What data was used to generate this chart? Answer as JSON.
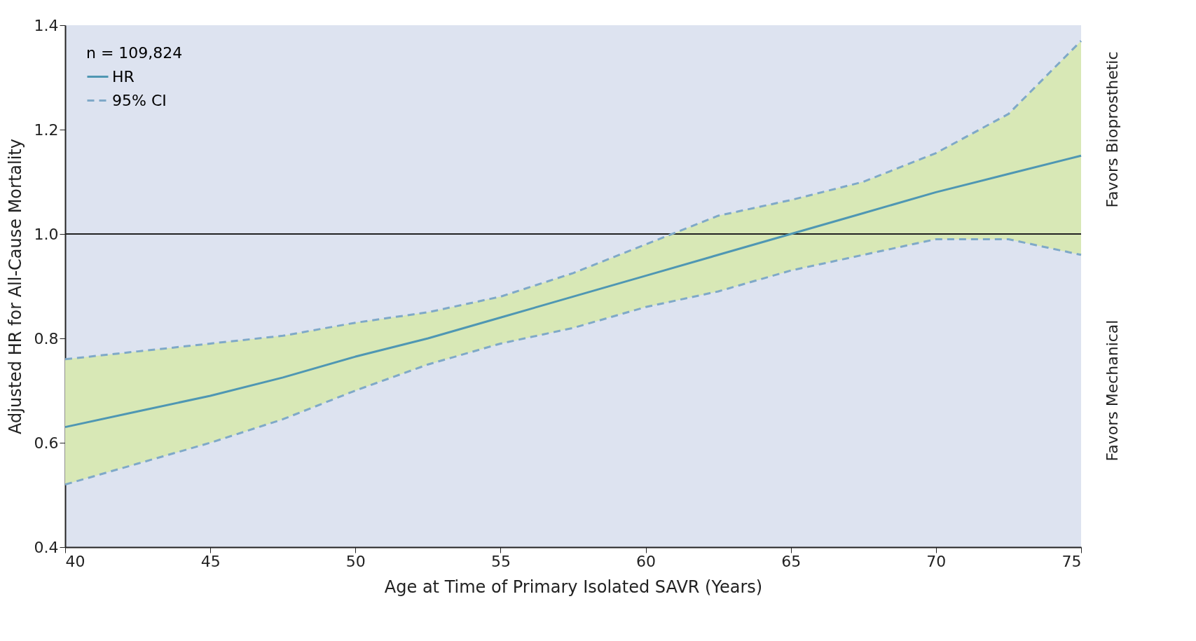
{
  "chart_data": {
    "type": "line",
    "xlabel": "Age at Time of Primary Isolated SAVR (Years)",
    "ylabel": "Adjusted HR for All-Cause Mortality",
    "legend_title": "n = 109,824",
    "legend": "top left",
    "grid": false,
    "x": [
      40,
      42.5,
      45,
      47.5,
      50,
      52.5,
      55,
      57.5,
      60,
      62.5,
      65,
      67.5,
      70,
      72.5,
      75
    ],
    "series": [
      {
        "name": "HR",
        "color": "#4f97b3",
        "line_style": "solid",
        "values": [
          0.63,
          0.66,
          0.69,
          0.725,
          0.765,
          0.8,
          0.84,
          0.88,
          0.92,
          0.96,
          1.0,
          1.04,
          1.08,
          1.115,
          1.15
        ],
        "lower": [
          0.52,
          0.56,
          0.6,
          0.645,
          0.7,
          0.75,
          0.79,
          0.82,
          0.86,
          0.89,
          0.93,
          0.96,
          0.99,
          0.99,
          0.96
        ],
        "upper": [
          0.76,
          0.775,
          0.79,
          0.805,
          0.83,
          0.85,
          0.88,
          0.925,
          0.98,
          1.035,
          1.065,
          1.1,
          1.155,
          1.23,
          1.37
        ]
      },
      {
        "name": "95% CI",
        "color": "#7fa9c8",
        "line_style": "dashed",
        "values": [
          0.76,
          0.775,
          0.79,
          0.805,
          0.83,
          0.85,
          0.88,
          0.925,
          0.98,
          1.035,
          1.065,
          1.1,
          1.155,
          1.23,
          1.37
        ]
      },
      {
        "color": "#7fa9c8",
        "line_style": "dashed",
        "values": [
          0.52,
          0.56,
          0.6,
          0.645,
          0.7,
          0.75,
          0.79,
          0.82,
          0.86,
          0.89,
          0.93,
          0.96,
          0.99,
          0.99,
          0.96
        ]
      }
    ],
    "xlim": [
      40,
      75
    ],
    "xticks": [
      40,
      45,
      50,
      55,
      60,
      65,
      70,
      75
    ],
    "ylim": [
      0.4,
      1.4
    ],
    "yticks": [
      {
        "value": 0.4,
        "label": "0.4"
      },
      {
        "value": 0.6,
        "label": "0.6"
      },
      {
        "value": 0.8,
        "label": "0.8"
      },
      {
        "value": 1.0,
        "label": "1.0"
      },
      {
        "value": 1.2,
        "label": "1.2"
      },
      {
        "value": 1.4,
        "label": "1.4"
      }
    ],
    "ref_lines": [
      {
        "axis": "y",
        "value": 1.0,
        "color": "#222222"
      }
    ],
    "annotations": [
      "Favors Bioprosthetic",
      "Favors Mechanical"
    ]
  }
}
